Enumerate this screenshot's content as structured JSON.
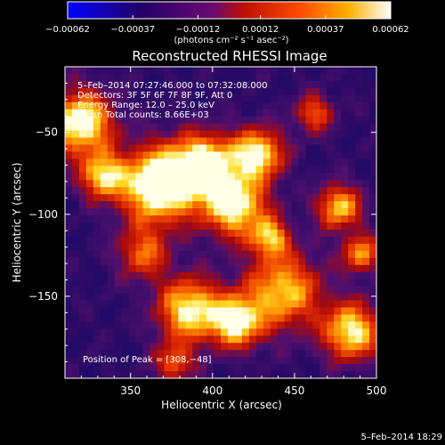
{
  "chart_data": {
    "type": "heatmap",
    "title": "Reconstructed RHESSI Image",
    "xlabel": "Heliocentric X (arcsec)",
    "ylabel": "Heliocentric Y (arcsec)",
    "xlim": [
      310,
      500
    ],
    "ylim": [
      -200,
      -10
    ],
    "x_ticks": [
      350,
      400,
      450,
      500
    ],
    "y_ticks": [
      -50,
      -100,
      -150
    ],
    "x_tick_labels": [
      "350",
      "400",
      "450",
      "500"
    ],
    "y_tick_labels": [
      "−50",
      "−100",
      "−150"
    ],
    "colorbar": {
      "range": [
        -0.00062,
        0.00062
      ],
      "ticks": [
        -0.00062,
        -0.00037,
        -0.00012,
        0.00012,
        0.00037,
        0.00062
      ],
      "tick_labels": [
        "−0.00062",
        "−0.00037",
        "−0.00012",
        "0.00012",
        "0.00037",
        "0.00062"
      ],
      "units": "(photons cm⁻² s⁻¹ asec⁻²)",
      "colors": [
        "#0000ff",
        "#2a006b",
        "#5a0a8c",
        "#b00000",
        "#ff4000",
        "#ff9a00",
        "#ffffff"
      ]
    },
    "annotations": [
      "5–Feb–2014 07:27:46.000 to 07:32:08.000",
      "Detectors: 3F 5F 6F 7F 8F 9F, Att 0",
      "Energy Range: 12.0 – 25.0 keV",
      "Clean    Total counts: 8.66E+03",
      "Position of Peak = [308,−48]"
    ],
    "peak_position": [
      308,
      -48
    ],
    "footer_date": "5–Feb–2014 18:29"
  }
}
